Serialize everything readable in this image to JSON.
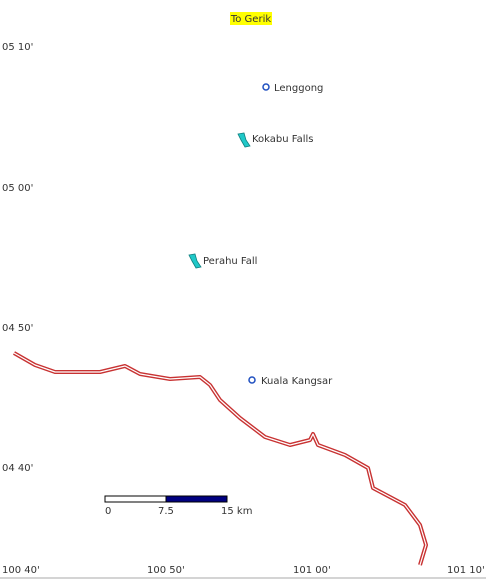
{
  "header": {
    "title": "To Gerik"
  },
  "latitude_labels": [
    "05 10'",
    "05 00'",
    "04 50'",
    "04 40'"
  ],
  "longitude_labels": [
    "100 40'",
    "100 50'",
    "101 00'",
    "101 10'"
  ],
  "places": [
    {
      "label": "Lenggong"
    },
    {
      "label": "Kokabu Falls"
    },
    {
      "label": "Perahu Fall"
    },
    {
      "label": "Kuala Kangsar"
    }
  ],
  "scale_bar": {
    "labels": [
      "0",
      "7.5",
      "15 km"
    ]
  }
}
